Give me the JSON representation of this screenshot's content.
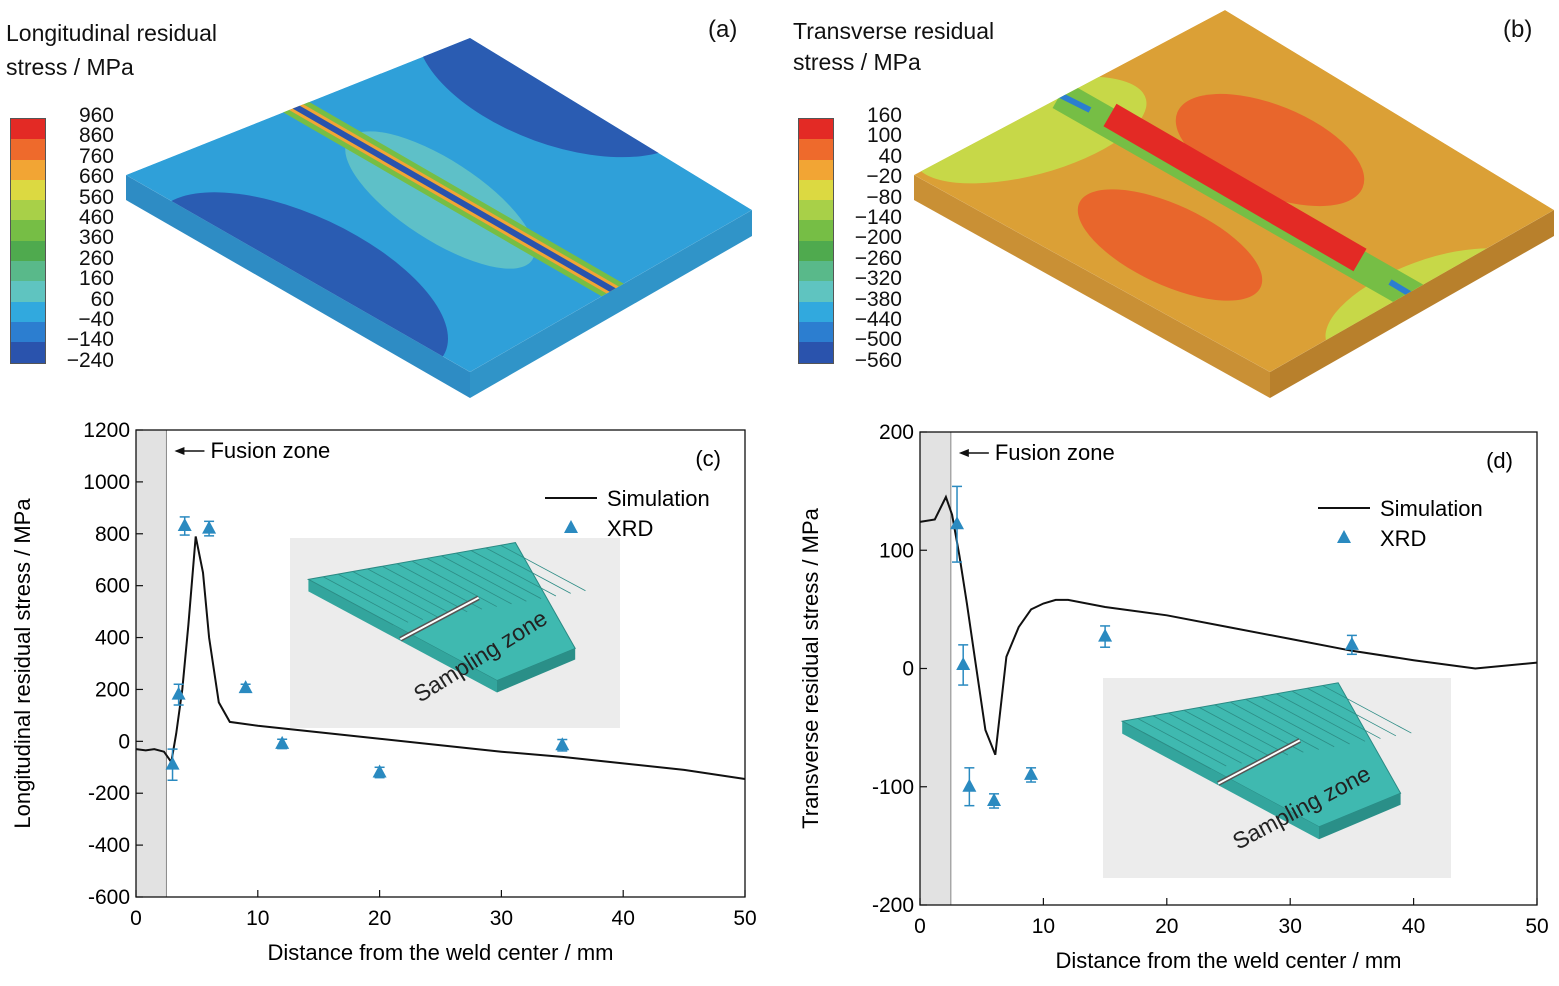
{
  "panel_a": {
    "label": "(a)",
    "title_line1": "Longitudinal residual",
    "title_line2": "stress / MPa",
    "scale_values": [
      "960",
      "860",
      "760",
      "660",
      "560",
      "460",
      "360",
      "260",
      "160",
      "60",
      "−40",
      "−140",
      "−240"
    ],
    "scale_colors": [
      "#e32a25",
      "#ee6a2c",
      "#f2a534",
      "#dcd941",
      "#a8d048",
      "#76be45",
      "#4faa4e",
      "#59b98a",
      "#5fc4c0",
      "#31a9de",
      "#2c7ed0",
      "#2a53ad"
    ]
  },
  "panel_b": {
    "label": "(b)",
    "title_line1": "Transverse residual",
    "title_line2": "stress / MPa",
    "scale_values": [
      "160",
      "100",
      "40",
      "−20",
      "−80",
      "−140",
      "−200",
      "−260",
      "−320",
      "−380",
      "−440",
      "−500",
      "−560"
    ],
    "scale_colors": [
      "#e32a25",
      "#ee6a2c",
      "#f2a534",
      "#dcd941",
      "#a8d048",
      "#76be45",
      "#4faa4e",
      "#59b98a",
      "#5fc4c0",
      "#31a9de",
      "#2c7ed0",
      "#2a53ad"
    ]
  },
  "chart_data": [
    {
      "type": "line",
      "panel_label": "(c)",
      "xlabel": "Distance from the weld center / mm",
      "ylabel": "Longitudinal residual stress / MPa",
      "xlim": [
        0,
        50
      ],
      "ylim": [
        -600,
        1200
      ],
      "xticks": [
        0,
        10,
        20,
        30,
        40,
        50
      ],
      "yticks": [
        -600,
        -400,
        -200,
        0,
        200,
        400,
        600,
        800,
        1000,
        1200
      ],
      "fusion_zone": [
        0,
        2.5
      ],
      "fusion_label": "Fusion zone",
      "inset_label": "Sampling zone",
      "series": [
        {
          "name": "Simulation",
          "color": "#111111",
          "x": [
            0,
            0.8,
            1.5,
            2.3,
            2.9,
            3.3,
            3.8,
            4.3,
            4.9,
            5.5,
            6.0,
            6.8,
            7.7,
            10,
            15,
            20,
            25,
            30,
            35,
            40,
            45,
            50
          ],
          "y": [
            -30,
            -35,
            -30,
            -40,
            -80,
            30,
            200,
            450,
            790,
            650,
            400,
            150,
            75,
            60,
            35,
            10,
            -15,
            -40,
            -60,
            -85,
            -110,
            -145
          ]
        },
        {
          "name": "XRD",
          "color": "#2a8ac0",
          "x": [
            3,
            3.5,
            4,
            6,
            9,
            12,
            20,
            35
          ],
          "y": [
            -90,
            180,
            830,
            820,
            205,
            -10,
            -120,
            -15
          ],
          "err": [
            60,
            40,
            35,
            28,
            15,
            18,
            20,
            22
          ]
        }
      ]
    },
    {
      "type": "line",
      "panel_label": "(d)",
      "xlabel": "Distance from the weld center / mm",
      "ylabel": "Transverse residual stress / MPa",
      "xlim": [
        0,
        50
      ],
      "ylim": [
        -200,
        200
      ],
      "xticks": [
        0,
        10,
        20,
        30,
        40,
        50
      ],
      "yticks": [
        -200,
        -100,
        0,
        100,
        200
      ],
      "fusion_zone": [
        0,
        2.5
      ],
      "fusion_label": "Fusion zone",
      "inset_label": "Sampling zone",
      "series": [
        {
          "name": "Simulation",
          "color": "#111111",
          "x": [
            0,
            1.2,
            2.1,
            2.6,
            3.2,
            3.8,
            4.5,
            5.3,
            6.1,
            7,
            8,
            9,
            10,
            11,
            12,
            15,
            20,
            25,
            30,
            35,
            40,
            45,
            50
          ],
          "y": [
            124,
            126,
            145,
            130,
            95,
            55,
            5,
            -52,
            -73,
            10,
            35,
            50,
            55,
            58,
            58,
            52,
            45,
            35,
            25,
            15,
            7,
            0,
            5
          ]
        },
        {
          "name": "XRD",
          "color": "#2a8ac0",
          "x": [
            3,
            3.5,
            4,
            6,
            9,
            15,
            35
          ],
          "y": [
            122,
            3,
            -100,
            -112,
            -90,
            27,
            20
          ],
          "err": [
            32,
            17,
            16,
            6,
            6,
            9,
            8
          ]
        }
      ]
    }
  ]
}
